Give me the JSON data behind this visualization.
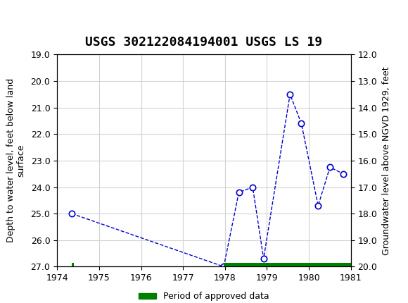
{
  "title": "USGS 302122084194001 USGS LS 19",
  "ylabel_left": "Depth to water level, feet below land\nsurface",
  "ylabel_right": "Groundwater level above NGVD 1929, feet",
  "xlabel": "",
  "xlim": [
    1974,
    1981
  ],
  "ylim_left": [
    19.0,
    27.0
  ],
  "ylim_right": [
    12.0,
    20.0
  ],
  "yticks_left": [
    19.0,
    20.0,
    21.0,
    22.0,
    23.0,
    24.0,
    25.0,
    26.0,
    27.0
  ],
  "yticks_right": [
    12.0,
    13.0,
    14.0,
    15.0,
    16.0,
    17.0,
    18.0,
    19.0,
    20.0
  ],
  "xticks": [
    1974,
    1975,
    1976,
    1977,
    1978,
    1979,
    1980,
    1981
  ],
  "data_x": [
    1974.35,
    1977.97,
    1978.33,
    1978.66,
    1978.92,
    1979.55,
    1979.82,
    1980.22,
    1980.5,
    1980.82
  ],
  "data_y": [
    25.0,
    27.0,
    24.2,
    24.0,
    26.7,
    20.5,
    21.6,
    24.7,
    23.25,
    23.5
  ],
  "line_color": "#0000cc",
  "marker_color": "#0000cc",
  "green_bar_color": "#008000",
  "green_bars": [
    {
      "x_start": 1974.35,
      "x_end": 1974.4,
      "y": 27.0
    },
    {
      "x_start": 1977.97,
      "x_end": 1981.0,
      "y": 27.0
    }
  ],
  "background_color": "#f0f0f0",
  "header_color": "#1a6b3c",
  "title_fontsize": 13,
  "tick_fontsize": 9,
  "label_fontsize": 9
}
